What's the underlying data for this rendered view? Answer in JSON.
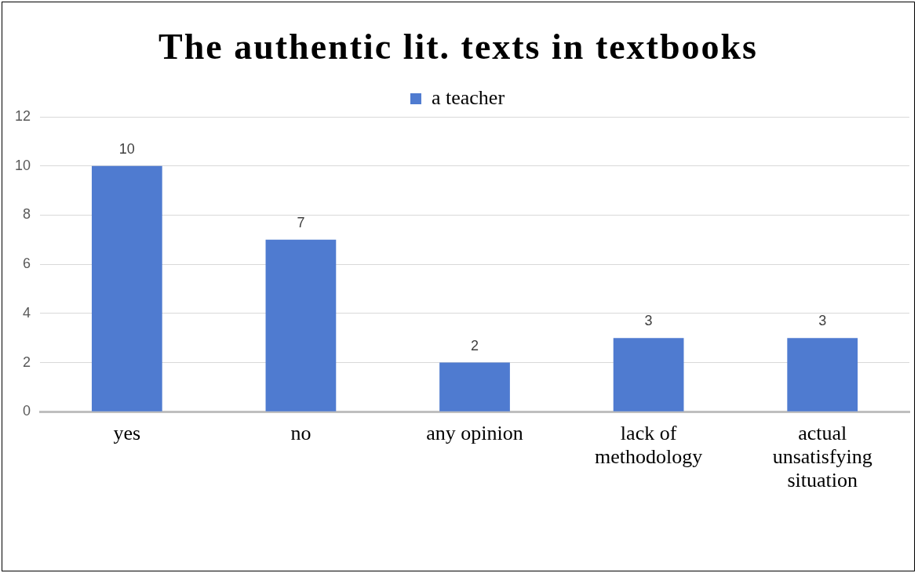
{
  "chart_data": {
    "type": "bar",
    "title": "The authentic lit. texts in textbooks",
    "categories": [
      "yes",
      "no",
      "any opinion",
      "lack of methodology",
      "actual unsatisfying situation"
    ],
    "series": [
      {
        "name": "a teacher",
        "color": "#4f7bd0",
        "values": [
          10,
          7,
          2,
          3,
          3
        ]
      }
    ],
    "ylim": [
      0,
      12
    ],
    "yticks": [
      0,
      2,
      4,
      6,
      8,
      10,
      12
    ],
    "grid": "y",
    "legend": "top",
    "data_labels": true
  }
}
